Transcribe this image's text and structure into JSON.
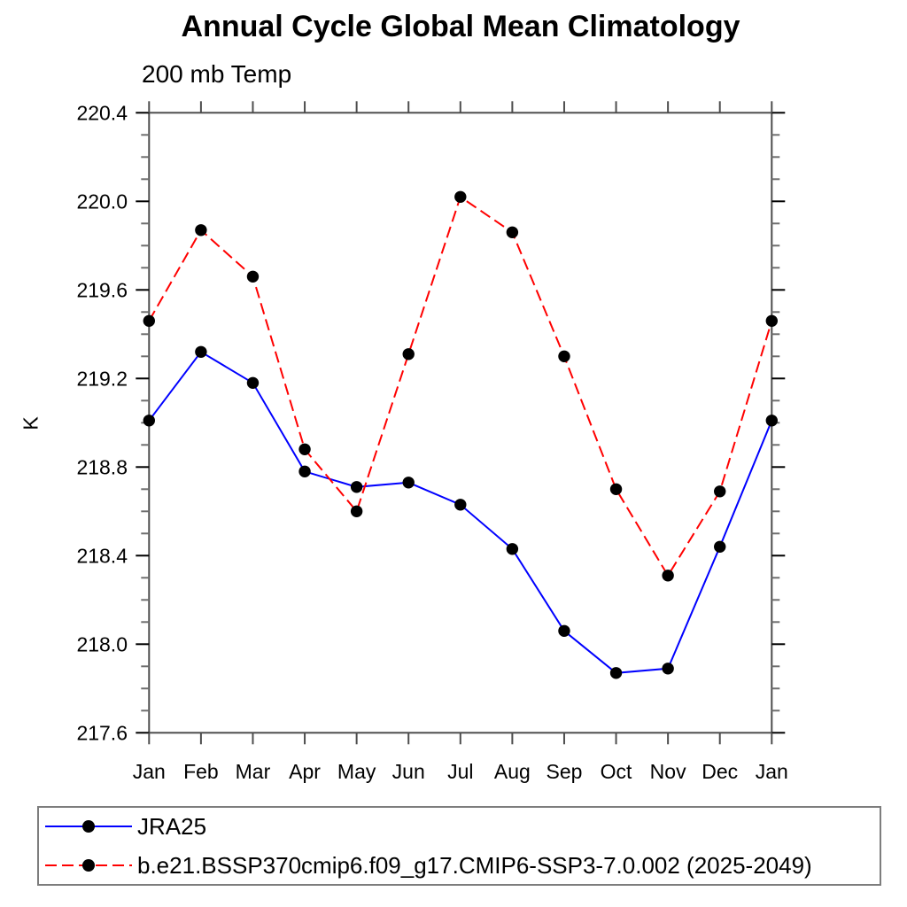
{
  "figure": {
    "title": "Annual Cycle Global Mean Climatology",
    "subtitle": "200 mb Temp"
  },
  "chart_data": {
    "type": "line",
    "title": "Annual Cycle Global Mean Climatology",
    "subtitle": "200 mb Temp",
    "ylabel": "K",
    "categories": [
      "Jan",
      "Feb",
      "Mar",
      "Apr",
      "May",
      "Jun",
      "Jul",
      "Aug",
      "Sep",
      "Oct",
      "Nov",
      "Dec",
      "Jan"
    ],
    "ylim": [
      217.6,
      220.4
    ],
    "ytick_major_step": 0.4,
    "ytick_minor_step": 0.1,
    "grid": false,
    "legend_position": "bottom-left-box",
    "marker": "filled-circle",
    "marker_color": "#000000",
    "series": [
      {
        "name": "JRA25",
        "color": "#0000ff",
        "style": "solid",
        "values": [
          219.01,
          219.32,
          219.18,
          218.78,
          218.71,
          218.73,
          218.63,
          218.43,
          218.06,
          217.87,
          217.89,
          218.44,
          219.01
        ]
      },
      {
        "name": "b.e21.BSSP370cmip6.f09_g17.CMIP6-SSP3-7.0.002 (2025-2049)",
        "color": "#ff0000",
        "style": "dashed",
        "values": [
          219.46,
          219.87,
          219.66,
          218.88,
          218.6,
          219.31,
          220.02,
          219.86,
          219.3,
          218.7,
          218.31,
          218.69,
          219.46
        ]
      }
    ]
  }
}
